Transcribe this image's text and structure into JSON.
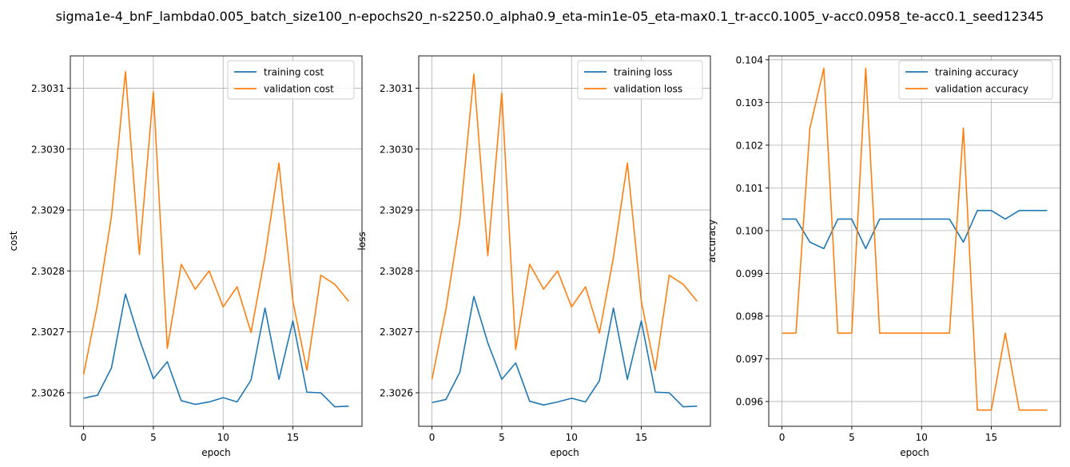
{
  "figure": {
    "title": "sigma1e-4_bnF_lambda0.005_batch_size100_n-epochs20_n-s2250.0_alpha0.9_eta-min1e-05_eta-max0.1_tr-acc0.1005_v-acc0.0958_te-acc0.1_seed12345"
  },
  "colors": {
    "series1": "#1f77b4",
    "series2": "#ff7f0e",
    "grid": "#b0b0b0"
  },
  "chart_data": [
    {
      "type": "line",
      "xlabel": "epoch",
      "ylabel": "cost",
      "xlim": [
        -0.95,
        19.95
      ],
      "ylim": [
        2.302545,
        2.303153
      ],
      "xticks": [
        0,
        5,
        10,
        15
      ],
      "xtick_labels": [
        "0",
        "5",
        "10",
        "15"
      ],
      "yticks": [
        2.3026,
        2.3027,
        2.3028,
        2.3029,
        2.303,
        2.3031
      ],
      "ytick_labels": [
        "2.3026",
        "2.3027",
        "2.3028",
        "2.3029",
        "2.3030",
        "2.3031"
      ],
      "grid": true,
      "legend_position": "top-right",
      "x": [
        0,
        1,
        2,
        3,
        4,
        5,
        6,
        7,
        8,
        9,
        10,
        11,
        12,
        13,
        14,
        15,
        16,
        17,
        18,
        19
      ],
      "series": [
        {
          "name": "training cost",
          "values": [
            2.302591,
            2.302596,
            2.302641,
            2.302762,
            2.302688,
            2.302623,
            2.302651,
            2.302587,
            2.302581,
            2.302585,
            2.302592,
            2.302585,
            2.302621,
            2.302739,
            2.302622,
            2.302718,
            2.302601,
            2.3026,
            2.302577,
            2.302578
          ]
        },
        {
          "name": "validation cost",
          "values": [
            2.30263,
            2.302745,
            2.30289,
            2.303127,
            2.302827,
            2.303094,
            2.302673,
            2.302811,
            2.30277,
            2.3028,
            2.302741,
            2.302774,
            2.302699,
            2.302824,
            2.302977,
            2.30275,
            2.302637,
            2.302793,
            2.302778,
            2.30275
          ]
        }
      ]
    },
    {
      "type": "line",
      "xlabel": "epoch",
      "ylabel": "loss",
      "xlim": [
        -0.95,
        19.95
      ],
      "ylim": [
        2.302545,
        2.303153
      ],
      "xticks": [
        0,
        5,
        10,
        15
      ],
      "xtick_labels": [
        "0",
        "5",
        "10",
        "15"
      ],
      "yticks": [
        2.3026,
        2.3027,
        2.3028,
        2.3029,
        2.303,
        2.3031
      ],
      "ytick_labels": [
        "2.3026",
        "2.3027",
        "2.3028",
        "2.3029",
        "2.3030",
        "2.3031"
      ],
      "grid": true,
      "legend_position": "top-right",
      "x": [
        0,
        1,
        2,
        3,
        4,
        5,
        6,
        7,
        8,
        9,
        10,
        11,
        12,
        13,
        14,
        15,
        16,
        17,
        18,
        19
      ],
      "series": [
        {
          "name": "training loss",
          "values": [
            2.302584,
            2.302589,
            2.302634,
            2.302758,
            2.302682,
            2.302622,
            2.302649,
            2.302586,
            2.30258,
            2.302585,
            2.302591,
            2.302585,
            2.30262,
            2.302739,
            2.302622,
            2.302718,
            2.302601,
            2.3026,
            2.302577,
            2.302578
          ]
        },
        {
          "name": "validation loss",
          "values": [
            2.302622,
            2.302737,
            2.302884,
            2.303123,
            2.302825,
            2.303092,
            2.302671,
            2.302811,
            2.30277,
            2.3028,
            2.302741,
            2.302774,
            2.302698,
            2.302822,
            2.302977,
            2.30275,
            2.302637,
            2.302793,
            2.302778,
            2.30275
          ]
        }
      ]
    },
    {
      "type": "line",
      "xlabel": "epoch",
      "ylabel": "accuracy",
      "xlim": [
        -0.95,
        19.95
      ],
      "ylim": [
        0.09542,
        0.10409
      ],
      "xticks": [
        0,
        5,
        10,
        15
      ],
      "xtick_labels": [
        "0",
        "5",
        "10",
        "15"
      ],
      "yticks": [
        0.096,
        0.097,
        0.098,
        0.099,
        0.1,
        0.101,
        0.102,
        0.103,
        0.104
      ],
      "ytick_labels": [
        "0.096",
        "0.097",
        "0.098",
        "0.099",
        "0.100",
        "0.101",
        "0.102",
        "0.103",
        "0.104"
      ],
      "grid": true,
      "legend_position": "top-right",
      "x": [
        0,
        1,
        2,
        3,
        4,
        5,
        6,
        7,
        8,
        9,
        10,
        11,
        12,
        13,
        14,
        15,
        16,
        17,
        18,
        19
      ],
      "series": [
        {
          "name": "training accuracy",
          "values": [
            0.10027,
            0.10027,
            0.09973,
            0.09958,
            0.10027,
            0.10027,
            0.09958,
            0.10027,
            0.10027,
            0.10027,
            0.10027,
            0.10027,
            0.10027,
            0.09973,
            0.10047,
            0.10047,
            0.10027,
            0.10047,
            0.10047,
            0.10047
          ]
        },
        {
          "name": "validation accuracy",
          "values": [
            0.0976,
            0.0976,
            0.1024,
            0.1038,
            0.0976,
            0.0976,
            0.1038,
            0.0976,
            0.0976,
            0.0976,
            0.0976,
            0.0976,
            0.0976,
            0.1024,
            0.0958,
            0.0958,
            0.0976,
            0.0958,
            0.0958,
            0.0958
          ]
        }
      ]
    }
  ]
}
